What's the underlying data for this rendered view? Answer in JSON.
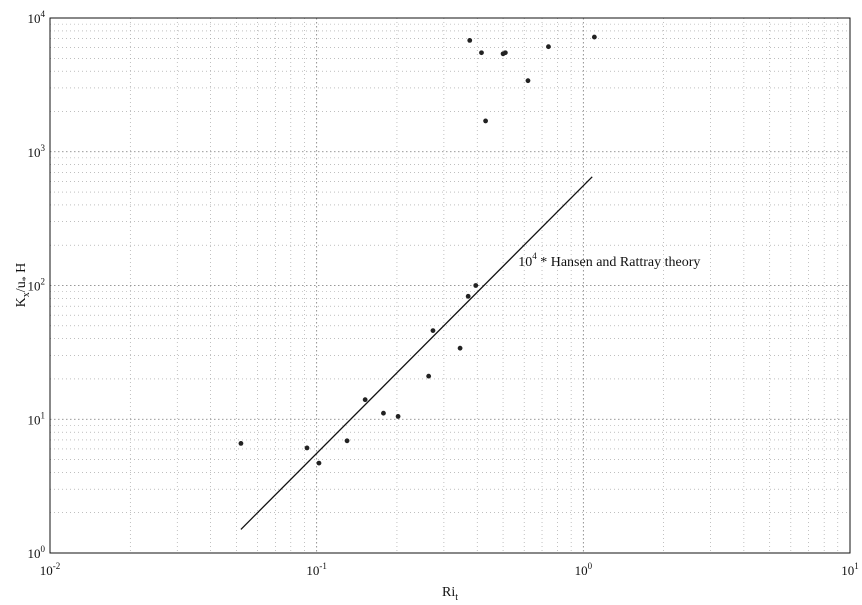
{
  "chart_data": {
    "type": "scatter",
    "xscale": "log",
    "yscale": "log",
    "xlim": [
      0.01,
      10
    ],
    "ylim": [
      1,
      10000
    ],
    "grid": true,
    "xlabel": {
      "main": "Ri",
      "sub": "t"
    },
    "ylabel": {
      "parts": [
        {
          "text": "K",
          "style": "normal"
        },
        {
          "text": "x",
          "style": "sub"
        },
        {
          "text": "/u",
          "style": "normal"
        },
        {
          "text": "*",
          "style": "sub"
        },
        {
          "text": " H",
          "style": "normal"
        }
      ]
    },
    "xticks": [
      {
        "base": "10",
        "exp": "-2",
        "value": 0.01
      },
      {
        "base": "10",
        "exp": "-1",
        "value": 0.1
      },
      {
        "base": "10",
        "exp": "0",
        "value": 1
      },
      {
        "base": "10",
        "exp": "1",
        "value": 10
      }
    ],
    "yticks": [
      {
        "base": "10",
        "exp": "0",
        "value": 1
      },
      {
        "base": "10",
        "exp": "1",
        "value": 10
      },
      {
        "base": "10",
        "exp": "2",
        "value": 100
      },
      {
        "base": "10",
        "exp": "3",
        "value": 1000
      },
      {
        "base": "10",
        "exp": "4",
        "value": 10000
      }
    ],
    "series": [
      {
        "marker": "dot",
        "points": [
          [
            0.052,
            6.6
          ],
          [
            0.092,
            6.1
          ],
          [
            0.102,
            4.7
          ],
          [
            0.13,
            6.9
          ],
          [
            0.152,
            14.0
          ],
          [
            0.178,
            11.1
          ],
          [
            0.202,
            10.5
          ],
          [
            0.263,
            21.0
          ],
          [
            0.273,
            46.0
          ],
          [
            0.345,
            34.0
          ],
          [
            0.37,
            83.0
          ],
          [
            0.395,
            100.0
          ],
          [
            0.375,
            6800.0
          ],
          [
            0.415,
            5500.0
          ],
          [
            0.43,
            1700.0
          ],
          [
            0.5,
            5400.0
          ],
          [
            0.51,
            5500.0
          ],
          [
            0.62,
            3400.0
          ],
          [
            0.74,
            6100.0
          ],
          [
            1.1,
            7200.0
          ]
        ]
      },
      {
        "marker": "line",
        "points": [
          [
            0.052,
            1.5
          ],
          [
            1.08,
            650.0
          ]
        ]
      }
    ],
    "annotation": {
      "base": "10",
      "exp": "4",
      "sep": " * ",
      "text": "Hansen and Rattray theory",
      "x": 0.57,
      "y": 140
    }
  }
}
